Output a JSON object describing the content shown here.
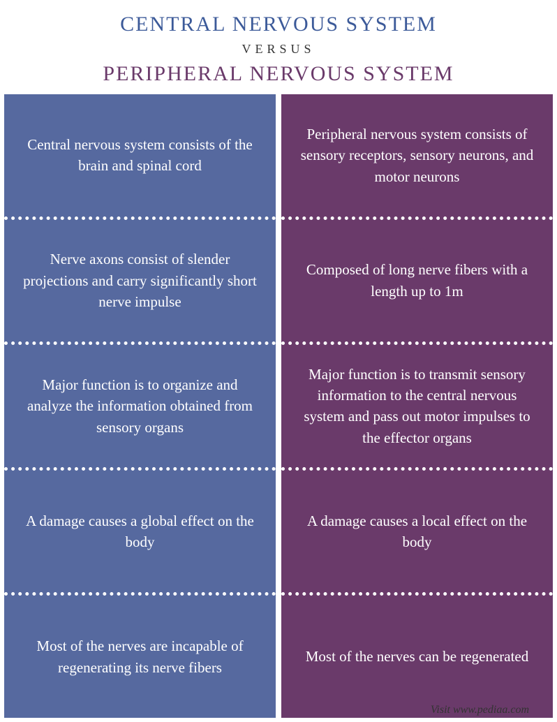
{
  "header": {
    "title_top": "CENTRAL NERVOUS SYSTEM",
    "title_mid": "VERSUS",
    "title_bot": "PERIPHERAL NERVOUS SYSTEM",
    "top_color": "#3c5a99",
    "bot_color": "#6a3a6a"
  },
  "left": {
    "bg_color": "#56699f",
    "divider_color": "#ffffff",
    "cells": [
      "Central nervous system consists of the brain and spinal cord",
      "Nerve axons consist of slender projections and carry significantly short nerve impulse",
      "Major function is to organize and analyze the information obtained from sensory organs",
      "A damage causes a global effect on the body",
      "Most of the nerves are incapable of regenerating its nerve fibers"
    ]
  },
  "right": {
    "bg_color": "#6a3a6a",
    "divider_color": "#ffffff",
    "cells": [
      "Peripheral nervous system consists of sensory receptors, sensory neurons, and motor neurons",
      "Composed of long nerve fibers with a length up to 1m",
      "Major function is to transmit sensory information to the central nervous system and pass out motor impulses to the effector organs",
      "A damage causes a local effect on the body",
      "Most of the nerves can be regenerated"
    ]
  },
  "footer": "Visit www.pediaa.com"
}
